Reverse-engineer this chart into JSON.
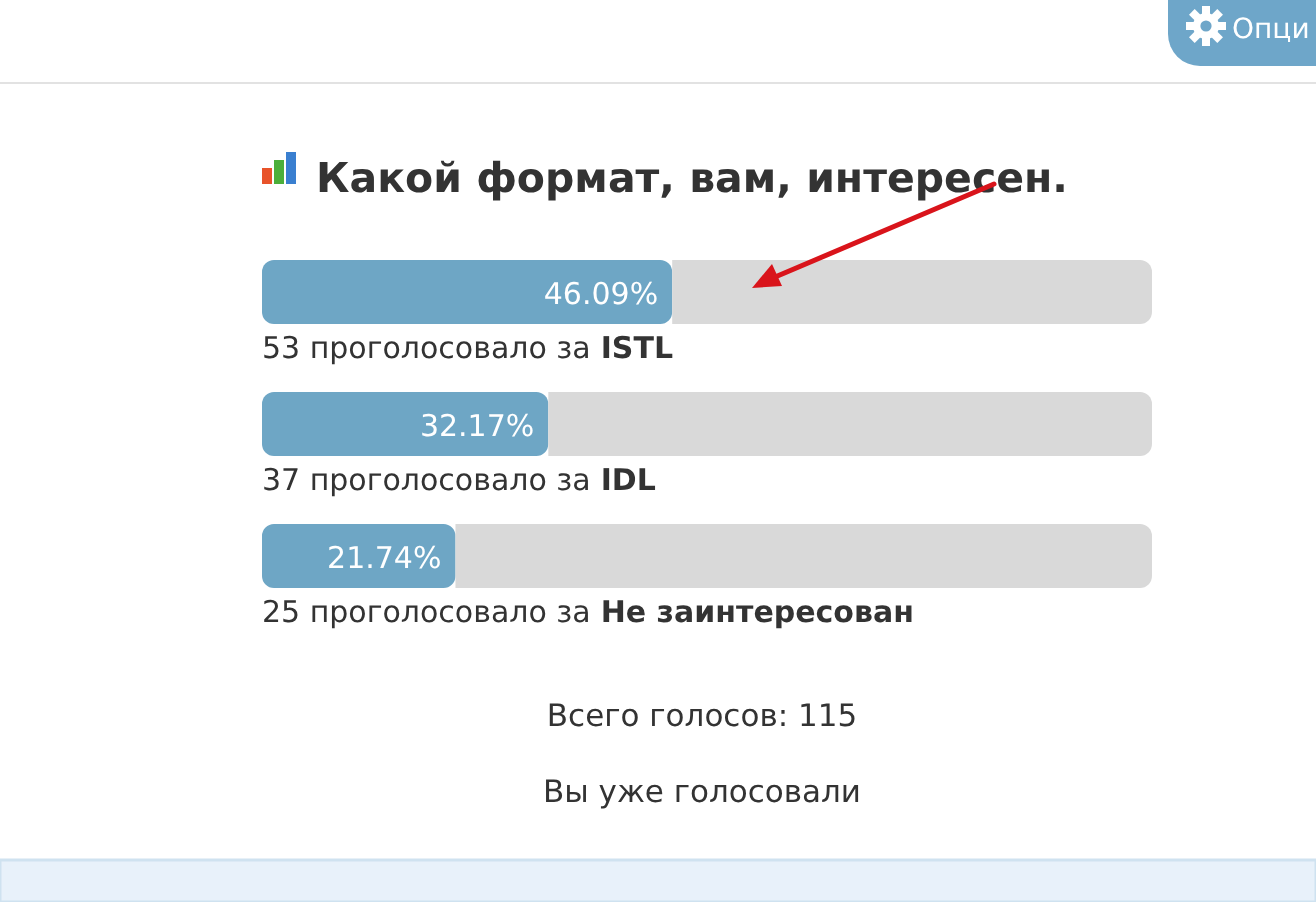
{
  "chart_data": {
    "type": "bar",
    "orientation": "horizontal",
    "stacked": true,
    "title": "Какой формат, вам, интересен.",
    "categories": [
      "ISTL",
      "IDL",
      "Не заинтересован"
    ],
    "series": [
      {
        "color": "#6ea6c5",
        "values": [
          46.09,
          32.17,
          21.74
        ],
        "value_labels": [
          "46.09%",
          "32.17%",
          "21.74%"
        ]
      },
      {
        "color": "#d9d9d9",
        "values": [
          53.91,
          67.83,
          78.26
        ]
      }
    ],
    "xlim": [
      0,
      100
    ],
    "annotations": [
      "53 проголосовало за",
      "37 проголосовало за",
      "25 проголосовало за",
      "Всего голосов: 115",
      "Вы уже голосовали",
      "Опци"
    ]
  }
}
